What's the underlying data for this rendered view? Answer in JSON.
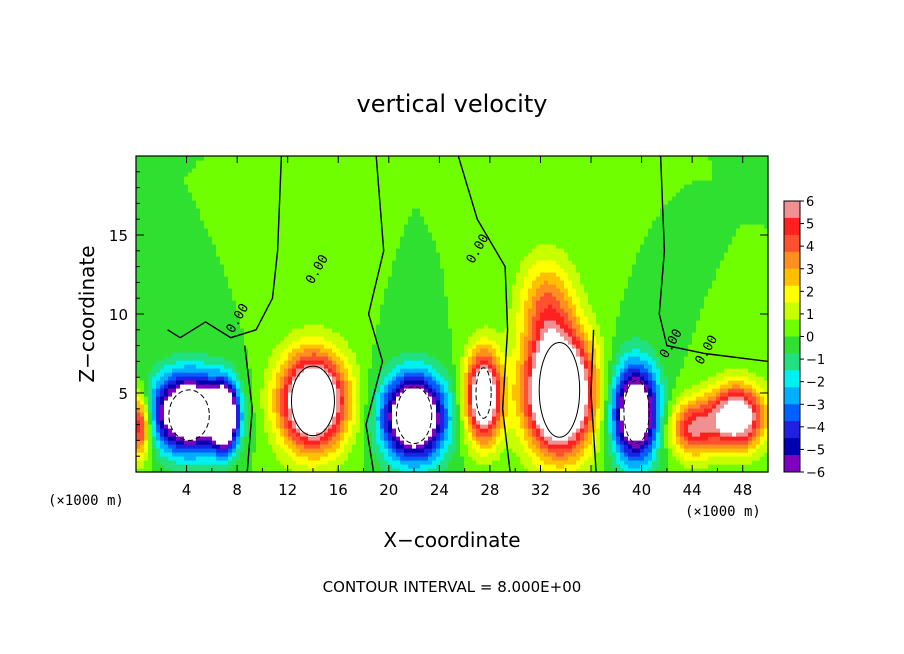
{
  "chart_data": {
    "type": "heatmap",
    "title": "vertical velocity",
    "xlabel": "X−coordinate",
    "ylabel": "Z−coordinate",
    "x_unit_label_left": "(×1000 m)",
    "x_unit_label_right": "(×1000 m)",
    "footer": "CONTOUR INTERVAL = 8.000E+00",
    "xlim": [
      0,
      50
    ],
    "ylim": [
      0,
      20
    ],
    "x_ticks": [
      4,
      8,
      12,
      16,
      20,
      24,
      28,
      32,
      36,
      40,
      44,
      48
    ],
    "x_tick_labels": [
      "4",
      "8",
      "12",
      "16",
      "20",
      "24",
      "28",
      "32",
      "36",
      "40",
      "44",
      "48"
    ],
    "y_ticks": [
      5,
      10,
      15
    ],
    "y_tick_labels": [
      "5",
      "10",
      "15"
    ],
    "contour_labels": [
      {
        "text": "0.00",
        "x": 8.3,
        "y": 9.6
      },
      {
        "text": "0.00",
        "x": 14.6,
        "y": 12.7
      },
      {
        "text": "0.00",
        "x": 27.3,
        "y": 14.0
      },
      {
        "text": "0.00",
        "x": 42.6,
        "y": 8.0
      },
      {
        "text": "0.00",
        "x": 45.4,
        "y": 7.6
      }
    ],
    "colorbar": {
      "min": -6,
      "max": 6,
      "tick_labels": [
        "6",
        "5",
        "4",
        "3",
        "2",
        "1",
        "0",
        "−1",
        "−2",
        "−3",
        "−4",
        "−5",
        "−6"
      ],
      "colors": [
        "#f09090",
        "#ff2020",
        "#ff5030",
        "#ff9020",
        "#ffc000",
        "#ffff00",
        "#c8ff00",
        "#70ff00",
        "#30e030",
        "#20e080",
        "#00f0f0",
        "#00b0ff",
        "#0060ff",
        "#2020e0",
        "#0000b0",
        "#8000c0"
      ]
    },
    "features": [
      {
        "kind": "downdraft",
        "x": 4.2,
        "z": 3.8,
        "rx": 2.8,
        "rz": 2.4,
        "amp": -10
      },
      {
        "kind": "downdraft",
        "x": 7.0,
        "z": 3.5,
        "rx": 1.0,
        "rz": 2.0,
        "amp": -9
      },
      {
        "kind": "updraft",
        "x": 14.0,
        "z": 4.5,
        "rx": 2.6,
        "rz": 3.0,
        "amp": 10
      },
      {
        "kind": "downdraft",
        "x": 22.0,
        "z": 3.5,
        "rx": 2.4,
        "rz": 2.6,
        "amp": -10
      },
      {
        "kind": "updraft",
        "x": 27.5,
        "z": 4.8,
        "rx": 1.4,
        "rz": 2.8,
        "amp": 9
      },
      {
        "kind": "updraft",
        "x": 33.5,
        "z": 5.0,
        "rx": 2.6,
        "rz": 3.6,
        "amp": 12
      },
      {
        "kind": "updraft",
        "x": 32.5,
        "z": 10.5,
        "rx": 2.2,
        "rz": 3.2,
        "amp": 3.5
      },
      {
        "kind": "downdraft",
        "x": 39.5,
        "z": 3.8,
        "rx": 1.8,
        "rz": 3.0,
        "amp": -9
      },
      {
        "kind": "updraft",
        "x": 47.5,
        "z": 3.5,
        "rx": 2.2,
        "rz": 2.0,
        "amp": 8
      },
      {
        "kind": "updraft",
        "x": 44.0,
        "z": 2.8,
        "rx": 1.8,
        "rz": 1.8,
        "amp": 5
      },
      {
        "kind": "updraft",
        "x": 0.3,
        "z": 3.0,
        "rx": 0.9,
        "rz": 2.0,
        "amp": 6
      }
    ]
  }
}
